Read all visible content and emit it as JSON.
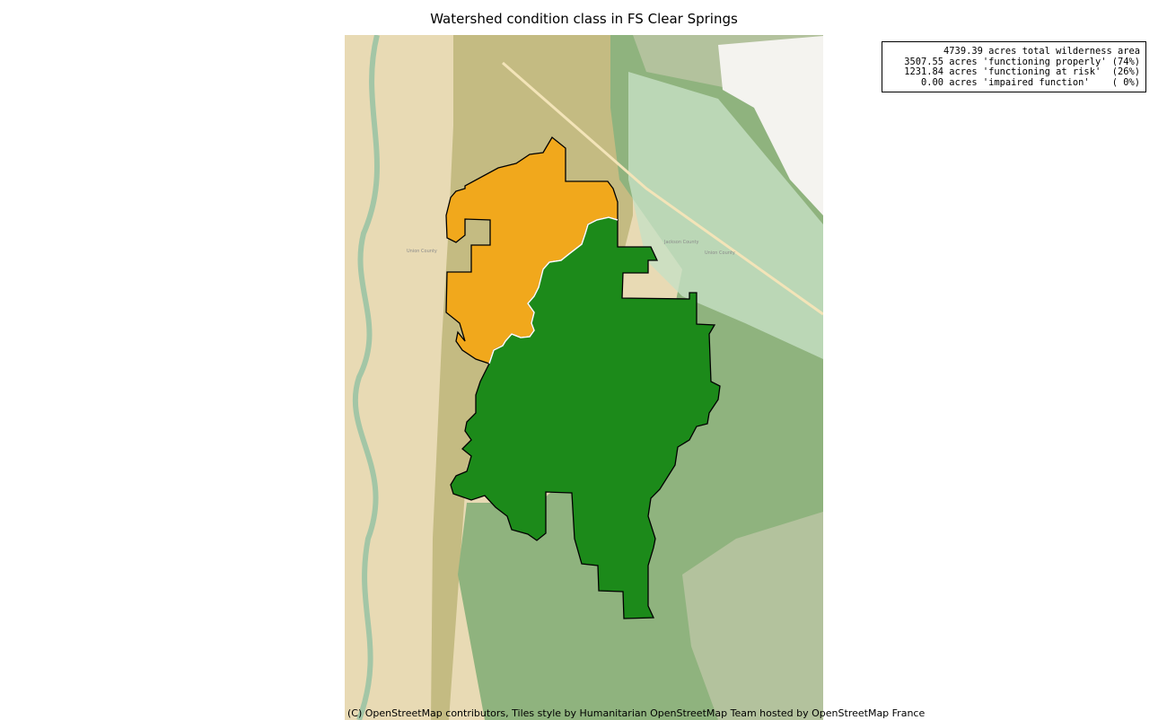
{
  "chart_data": {
    "type": "choropleth",
    "title": "Watershed condition class in FS Clear Springs",
    "summary_lines": [
      "4739.39 acres total wilderness area",
      "3507.55 acres 'functioning properly' (74%)",
      "1231.84 acres 'functioning at risk'  (26%)",
      "0.00 acres 'impaired function'    ( 0%)"
    ],
    "total_acres": 4739.39,
    "classes": [
      {
        "name": "functioning properly",
        "acres": 3507.55,
        "percent": 74,
        "color": "#1c8a1a"
      },
      {
        "name": "functioning at risk",
        "acres": 1231.84,
        "percent": 26,
        "color": "#f1a81c"
      },
      {
        "name": "impaired function",
        "acres": 0.0,
        "percent": 0,
        "color": "#d62728"
      }
    ],
    "legend_placement": "top-right",
    "map_labels": [
      "Union County",
      "Jackson County",
      "Union County",
      "Jackson County",
      "Union County"
    ],
    "attribution": "(C) OpenStreetMap contributors, Tiles style by Humanitarian OpenStreetMap Team hosted by OpenStreetMap France"
  }
}
